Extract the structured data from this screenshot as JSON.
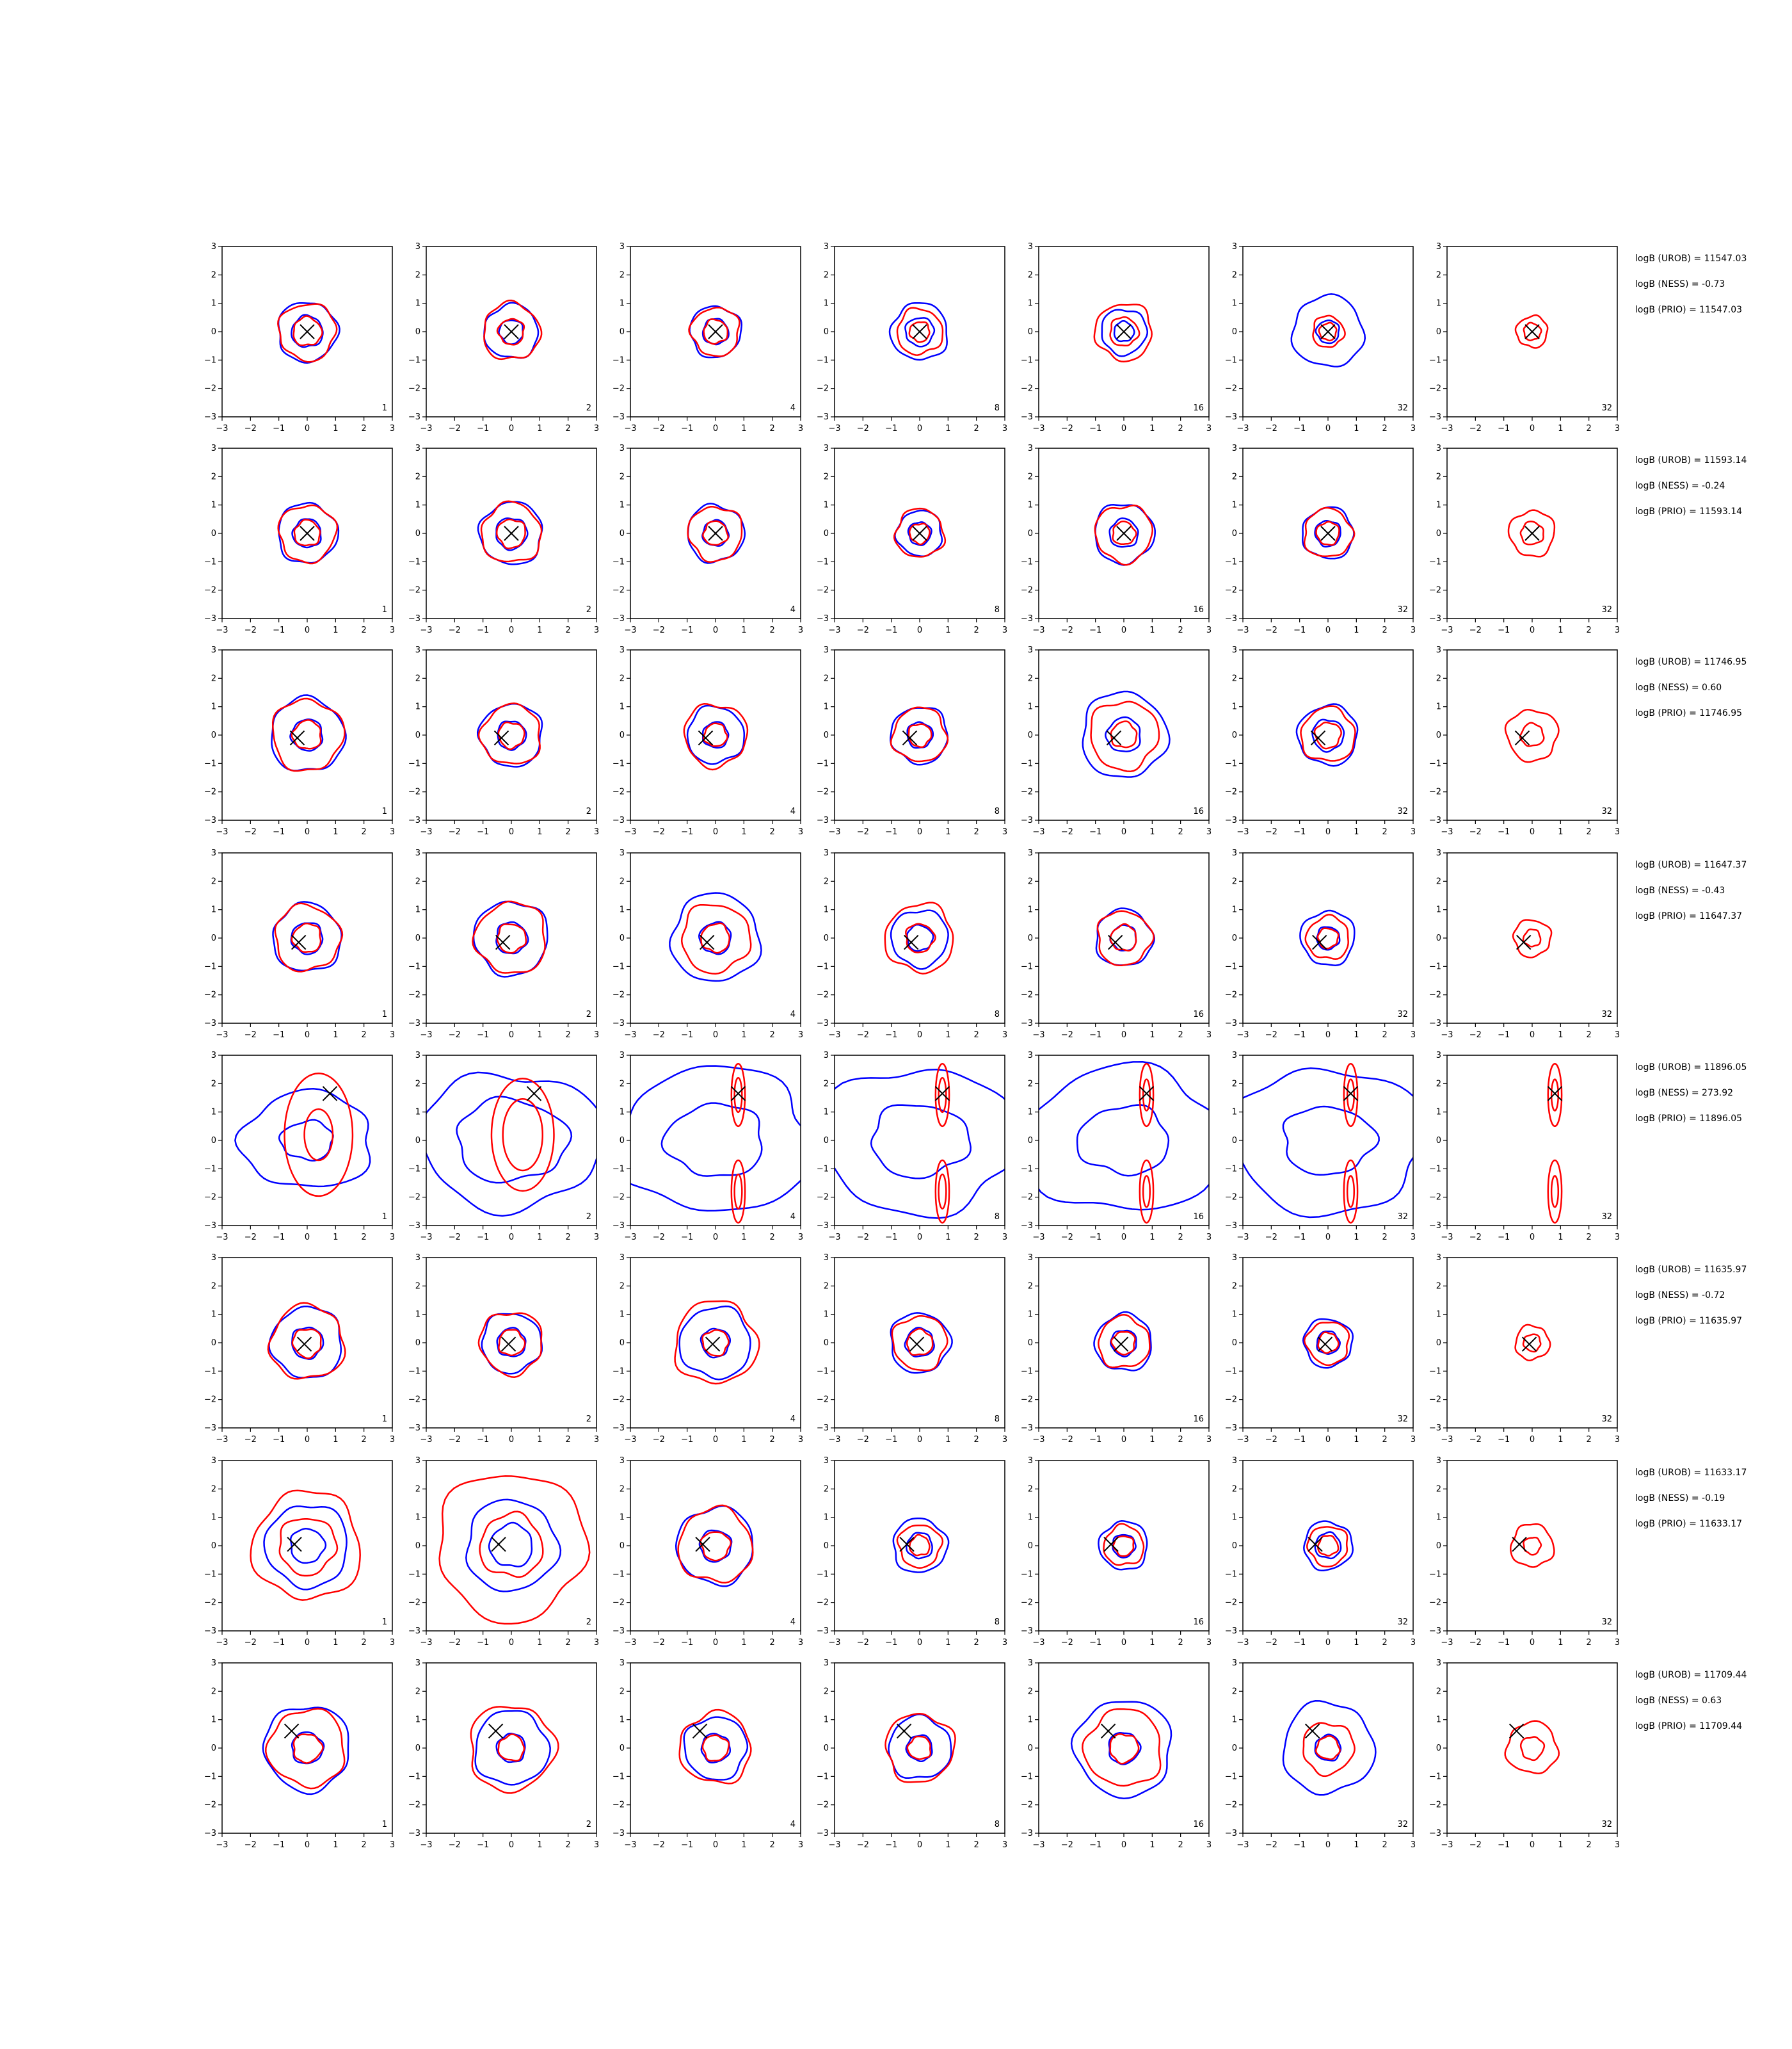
{
  "chart_data": {
    "type": "contour-grid",
    "title": "",
    "xlim": [
      -3,
      3
    ],
    "ylim": [
      -3,
      3
    ],
    "ticks": [
      -3,
      -2,
      -1,
      0,
      1,
      2,
      3
    ],
    "grid": false,
    "legend": "none",
    "series_colors": {
      "blue": "#0000ff",
      "red": "#ff0000",
      "marker": "#000000"
    },
    "column_labels": [
      "1",
      "2",
      "4",
      "8",
      "16",
      "32",
      "32"
    ],
    "rows": [
      {
        "marker": [
          0.0,
          0.0
        ],
        "annotations": [
          "logB (UROB) = 11547.03",
          "logB (NESS) = -0.73",
          "logB (PRIO) = 11547.03"
        ],
        "panels": [
          {
            "blue": [
              1.05,
              0.55
            ],
            "red": [
              1.0,
              0.5
            ]
          },
          {
            "blue": [
              0.95,
              0.42
            ],
            "red": [
              1.0,
              0.45
            ]
          },
          {
            "blue": [
              0.9,
              0.45
            ],
            "red": [
              0.85,
              0.42
            ]
          },
          {
            "blue": [
              1.0,
              0.5
            ],
            "red": [
              0.8,
              0.35
            ]
          },
          {
            "blue": [
              0.8,
              0.35
            ],
            "red": [
              1.0,
              0.5
            ]
          },
          {
            "blue": [
              1.25,
              0.4
            ],
            "red": [
              0.55,
              0.3
            ]
          },
          {
            "blue": [],
            "red": [
              0.55,
              0.3
            ]
          }
        ]
      },
      {
        "marker": [
          0.0,
          0.0
        ],
        "annotations": [
          "logB (UROB) = 11593.14",
          "logB (NESS) = -0.24",
          "logB (PRIO) = 11593.14"
        ],
        "panels": [
          {
            "blue": [
              1.05,
              0.5
            ],
            "red": [
              1.0,
              0.45
            ]
          },
          {
            "blue": [
              1.1,
              0.55
            ],
            "red": [
              1.05,
              0.5
            ]
          },
          {
            "blue": [
              1.0,
              0.45
            ],
            "red": [
              0.95,
              0.42
            ]
          },
          {
            "blue": [
              0.8,
              0.4
            ],
            "red": [
              0.85,
              0.35
            ]
          },
          {
            "blue": [
              1.05,
              0.5
            ],
            "red": [
              1.0,
              0.4
            ]
          },
          {
            "blue": [
              0.9,
              0.45
            ],
            "red": [
              0.85,
              0.4
            ]
          },
          {
            "blue": [],
            "red": [
              0.8,
              0.4
            ]
          }
        ]
      },
      {
        "marker": [
          -0.35,
          -0.1
        ],
        "annotations": [
          "logB (UROB) = 11746.95",
          "logB (NESS) = 0.60",
          "logB (PRIO) = 11746.95"
        ],
        "panels": [
          {
            "blue": [
              1.3,
              0.55
            ],
            "red": [
              1.25,
              0.5
            ]
          },
          {
            "blue": [
              1.1,
              0.5
            ],
            "red": [
              1.05,
              0.45
            ]
          },
          {
            "blue": [
              1.0,
              0.45
            ],
            "red": [
              1.1,
              0.4
            ]
          },
          {
            "blue": [
              1.0,
              0.45
            ],
            "red": [
              0.95,
              0.4
            ]
          },
          {
            "blue": [
              1.5,
              0.6
            ],
            "red": [
              1.2,
              0.45
            ]
          },
          {
            "blue": [
              1.05,
              0.55
            ],
            "red": [
              0.95,
              0.45
            ]
          },
          {
            "blue": [],
            "red": [
              0.9,
              0.4
            ]
          }
        ]
      },
      {
        "marker": [
          -0.3,
          -0.15
        ],
        "annotations": [
          "logB (UROB) = 11647.37",
          "logB (NESS) = -0.43",
          "logB (PRIO) = 11647.37"
        ],
        "panels": [
          {
            "blue": [
              1.2,
              0.55
            ],
            "red": [
              1.15,
              0.5
            ]
          },
          {
            "blue": [
              1.3,
              0.55
            ],
            "red": [
              1.25,
              0.5
            ]
          },
          {
            "blue": [
              1.55,
              0.55
            ],
            "red": [
              1.2,
              0.5
            ]
          },
          {
            "blue": [
              1.0,
              0.45
            ],
            "red": [
              1.2,
              0.5
            ]
          },
          {
            "blue": [
              1.0,
              0.45
            ],
            "red": [
              0.95,
              0.45
            ]
          },
          {
            "blue": [
              0.95,
              0.4
            ],
            "red": [
              0.75,
              0.35
            ]
          },
          {
            "blue": [],
            "red": [
              0.65,
              0.3
            ]
          }
        ]
      },
      {
        "marker": [
          0.8,
          1.65
        ],
        "annotations": [
          "logB (UROB) = 11896.05",
          "logB (NESS) = 273.92",
          "logB (PRIO) = 11896.05"
        ],
        "panels": [
          {
            "blue": [
              2.0,
              0.8
            ],
            "red": [
              2.4,
              1.0
            ]
          },
          {
            "blue": [
              2.8,
              1.7
            ],
            "red": [
              2.2,
              1.4
            ]
          },
          {
            "blue": [
              3.0,
              1.5
            ],
            "red": [
              2.0,
              1.1
            ]
          },
          {
            "blue": [
              3.0,
              1.5
            ],
            "red": [
              2.0,
              1.1
            ]
          },
          {
            "blue": [
              3.0,
              1.4
            ],
            "red": [
              2.0,
              1.0
            ]
          },
          {
            "blue": [
              3.0,
              1.4
            ],
            "red": [
              2.0,
              1.0
            ]
          },
          {
            "blue": [],
            "red": [
              2.0,
              1.0
            ]
          }
        ]
      },
      {
        "marker": [
          -0.1,
          -0.05
        ],
        "annotations": [
          "logB (UROB) = 11635.97",
          "logB (NESS) = -0.72",
          "logB (PRIO) = 11635.97"
        ],
        "panels": [
          {
            "blue": [
              1.25,
              0.55
            ],
            "red": [
              1.3,
              0.5
            ]
          },
          {
            "blue": [
              1.05,
              0.5
            ],
            "red": [
              1.1,
              0.45
            ]
          },
          {
            "blue": [
              1.25,
              0.5
            ],
            "red": [
              1.45,
              0.45
            ]
          },
          {
            "blue": [
              1.05,
              0.5
            ],
            "red": [
              0.95,
              0.45
            ]
          },
          {
            "blue": [
              1.0,
              0.45
            ],
            "red": [
              0.9,
              0.4
            ]
          },
          {
            "blue": [
              0.85,
              0.4
            ],
            "red": [
              0.75,
              0.35
            ]
          },
          {
            "blue": [],
            "red": [
              0.6,
              0.3
            ]
          }
        ]
      },
      {
        "marker": [
          -0.45,
          0.05
        ],
        "annotations": [
          "logB (UROB) = 11633.17",
          "logB (NESS) = -0.19",
          "logB (PRIO) = 11633.17"
        ],
        "panels": [
          {
            "blue": [
              1.45,
              0.6
            ],
            "red": [
              1.9,
              1.0
            ]
          },
          {
            "blue": [
              1.6,
              0.75
            ],
            "red": [
              2.6,
              1.1
            ]
          },
          {
            "blue": [
              1.35,
              0.55
            ],
            "red": [
              1.3,
              0.5
            ]
          },
          {
            "blue": [
              0.95,
              0.45
            ],
            "red": [
              0.75,
              0.35
            ]
          },
          {
            "blue": [
              0.85,
              0.4
            ],
            "red": [
              0.7,
              0.35
            ]
          },
          {
            "blue": [
              0.85,
              0.45
            ],
            "red": [
              0.7,
              0.35
            ]
          },
          {
            "blue": [],
            "red": [
              0.75,
              0.3
            ]
          }
        ]
      },
      {
        "marker": [
          -0.55,
          0.6
        ],
        "annotations": [
          "logB (UROB) = 11709.44",
          "logB (NESS) = 0.63",
          "logB (PRIO) = 11709.44"
        ],
        "panels": [
          {
            "blue": [
              1.5,
              0.55
            ],
            "red": [
              1.35,
              0.5
            ]
          },
          {
            "blue": [
              1.3,
              0.5
            ],
            "red": [
              1.5,
              0.45
            ]
          },
          {
            "blue": [
              1.1,
              0.5
            ],
            "red": [
              1.25,
              0.45
            ]
          },
          {
            "blue": [
              1.1,
              0.45
            ],
            "red": [
              1.2,
              0.4
            ]
          },
          {
            "blue": [
              1.7,
              0.55
            ],
            "red": [
              1.35,
              0.5
            ]
          },
          {
            "blue": [
              1.6,
              0.45
            ],
            "red": [
              0.9,
              0.4
            ]
          },
          {
            "blue": [],
            "red": [
              0.9,
              0.4
            ]
          }
        ]
      }
    ]
  }
}
